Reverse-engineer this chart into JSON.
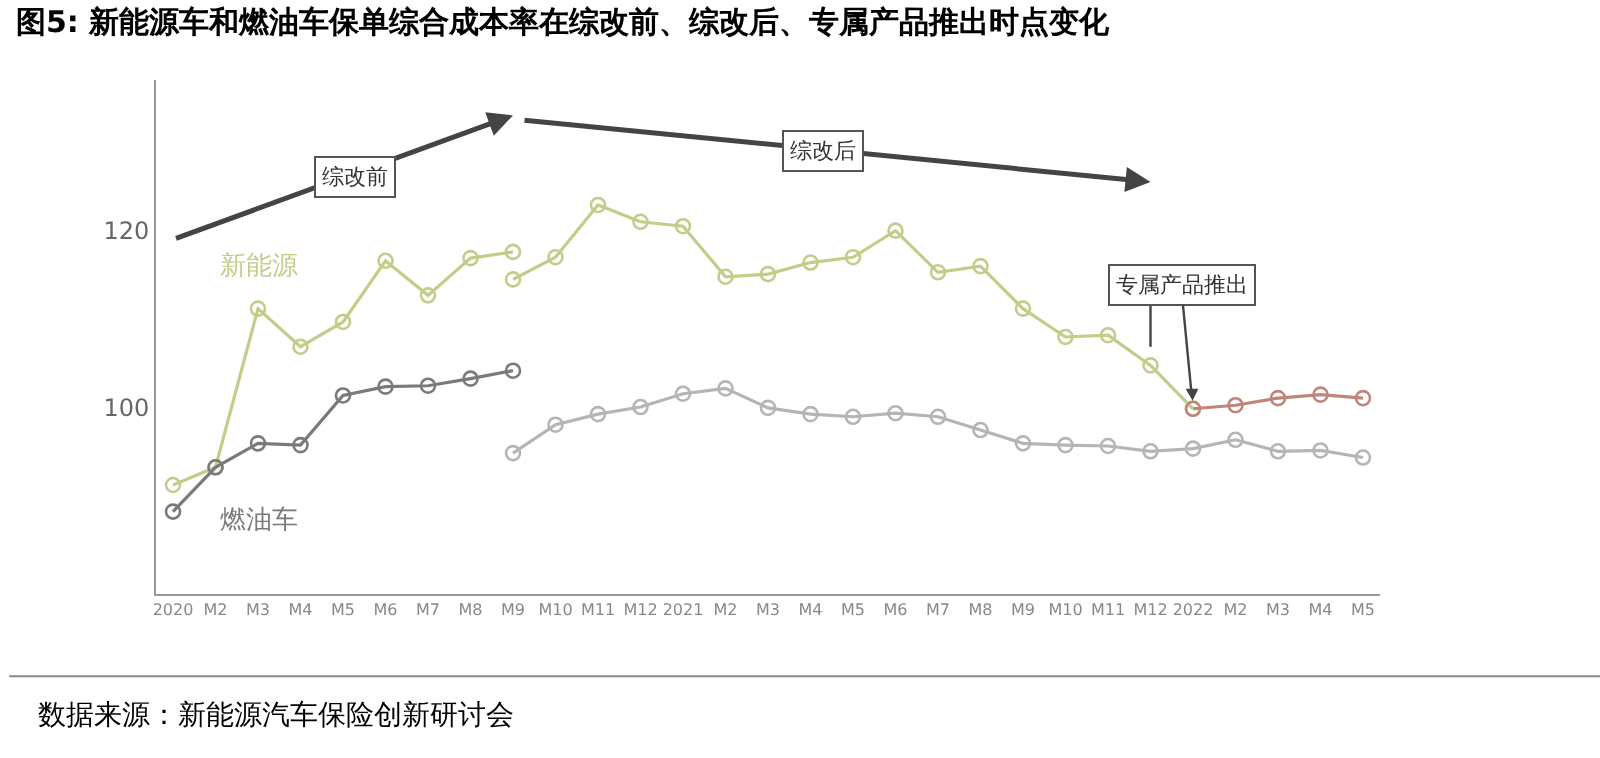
{
  "chart_data": {
    "type": "line",
    "title": "图5: 新能源车和燃油车保单综合成本率在综改前、综改后、专属产品推出时点变化",
    "categories": [
      "2020",
      "M2",
      "M3",
      "M4",
      "M5",
      "M6",
      "M7",
      "M8",
      "M9",
      "M10",
      "M11",
      "M12",
      "2021",
      "M2",
      "M3",
      "M4",
      "M5",
      "M6",
      "M7",
      "M8",
      "M9",
      "M10",
      "M11",
      "M12",
      "2022",
      "M2",
      "M3",
      "M4",
      "M5"
    ],
    "series": [
      {
        "name": "新能源",
        "color": "#c5cc8a",
        "values": [
          91.3,
          93.3,
          111.2,
          106.9,
          109.7,
          116.6,
          112.7,
          116.9,
          117.6,
          null,
          null,
          null,
          null,
          null,
          null,
          null,
          null,
          null,
          null,
          null,
          null,
          null,
          null,
          null,
          null,
          null,
          null,
          null,
          null
        ]
      },
      {
        "color": "#c5cc8a",
        "values": [
          null,
          null,
          null,
          null,
          null,
          null,
          null,
          null,
          114.5,
          117.0,
          122.9,
          121.0,
          120.5,
          114.8,
          115.1,
          116.4,
          117.0,
          120.0,
          115.3,
          116.0,
          111.2,
          108.0,
          108.2,
          104.8,
          99.9,
          null,
          null,
          null,
          null
        ]
      },
      {
        "color": "#c0857a",
        "values": [
          null,
          null,
          null,
          null,
          null,
          null,
          null,
          null,
          null,
          null,
          null,
          null,
          null,
          null,
          null,
          null,
          null,
          null,
          null,
          null,
          null,
          null,
          null,
          null,
          99.9,
          100.3,
          101.1,
          101.5,
          101.1
        ]
      },
      {
        "name": "燃油车",
        "color": "#7a7a7a",
        "values": [
          88.3,
          93.3,
          96.0,
          95.8,
          101.4,
          102.4,
          102.5,
          103.3,
          104.2,
          null,
          null,
          null,
          null,
          null,
          null,
          null,
          null,
          null,
          null,
          null,
          null,
          null,
          null,
          null,
          null,
          null,
          null,
          null,
          null
        ]
      },
      {
        "color": "#b5b5b5",
        "values": [
          null,
          null,
          null,
          null,
          null,
          null,
          null,
          null,
          94.9,
          98.1,
          99.3,
          100.1,
          101.6,
          102.2,
          100.0,
          99.3,
          99.0,
          99.4,
          99.0,
          97.5,
          96.0,
          95.8,
          95.7,
          95.1,
          95.4,
          96.4,
          95.1,
          95.2,
          94.4
        ]
      }
    ],
    "ylim": [
      79,
      137
    ],
    "yticks": [
      100,
      120
    ],
    "grid": false,
    "legend": false,
    "marker": "circle",
    "line_style": "solid",
    "annotations": [
      "综改前",
      "综改后",
      {
        "text": "专属产品推出",
        "x": "2022",
        "y": 99.9
      },
      "数据来源：新能源汽车保险创新研讨会"
    ]
  }
}
